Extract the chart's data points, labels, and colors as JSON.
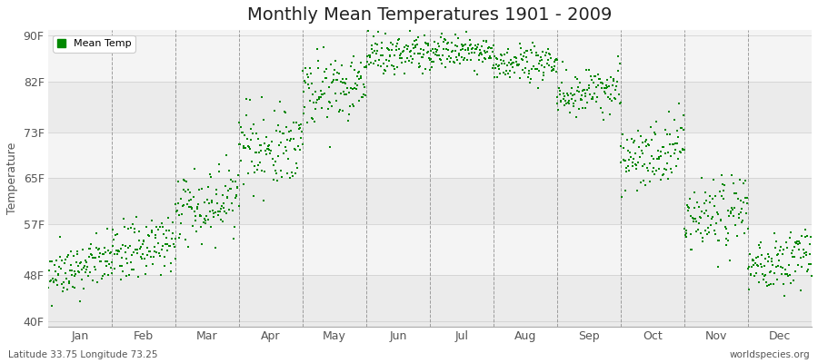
{
  "title": "Monthly Mean Temperatures 1901 - 2009",
  "ylabel": "Temperature",
  "xlabel": "",
  "subtitle_left": "Latitude 33.75 Longitude 73.25",
  "subtitle_right": "worldspecies.org",
  "dot_color": "#008800",
  "bg_color": "#f4f4f4",
  "band_colors": [
    "#ebebeb",
    "#f4f4f4"
  ],
  "plot_bg": "#f4f4f4",
  "yticks": [
    40,
    48,
    57,
    65,
    73,
    82,
    90
  ],
  "ylabels": [
    "40F",
    "48F",
    "57F",
    "65F",
    "73F",
    "82F",
    "90F"
  ],
  "ylim": [
    39,
    91
  ],
  "months": [
    "Jan",
    "Feb",
    "Mar",
    "Apr",
    "May",
    "Jun",
    "Jul",
    "Aug",
    "Sep",
    "Oct",
    "Nov",
    "Dec"
  ],
  "monthly_means": [
    48.2,
    51.5,
    59.5,
    69.5,
    80.5,
    86.5,
    86.8,
    84.5,
    79.5,
    68.5,
    57.5,
    49.5
  ],
  "monthly_stds": [
    2.2,
    2.5,
    3.2,
    3.5,
    3.0,
    1.8,
    1.5,
    1.6,
    2.2,
    2.8,
    3.2,
    2.5
  ],
  "monthly_trend": [
    0.02,
    0.02,
    0.02,
    0.02,
    0.01,
    0.01,
    0.01,
    0.01,
    0.01,
    0.02,
    0.02,
    0.02
  ],
  "n_years": 109,
  "start_year": 1901,
  "seed": 42,
  "legend_label": "Mean Temp",
  "dot_size": 4,
  "dot_marker": "s",
  "title_fontsize": 14,
  "label_fontsize": 9,
  "tick_fontsize": 9,
  "dashed_line_color": "#888888",
  "grid_line_color": "#cccccc"
}
